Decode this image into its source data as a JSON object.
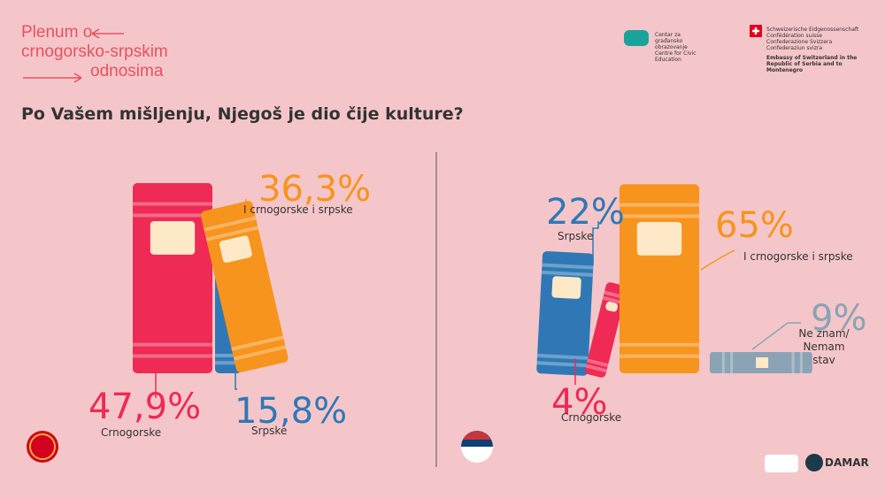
{
  "header": {
    "logo_lines": [
      "Plenum o",
      "crnogorsko-srpskim",
      "odnosima"
    ],
    "partner_lines": [
      "Centar za građansko obrazovanje",
      "Centre for Civic Education"
    ],
    "embassy_lines": [
      "Schweizerische Eidgenossenschaft",
      "Confédération suisse",
      "Confederazione Svizzera",
      "Confederaziun svizra",
      "Embassy of Switzerland in the Republic of Serbia and to Montenegro"
    ],
    "footer_logo": "DAMAR"
  },
  "question": "Po Vašem mišljenju, Njegoš je dio čije kulture?",
  "chart_data": [
    {
      "type": "book",
      "categories": [
        "Crnogorske",
        "Srpske",
        "I crnogorske i srpske"
      ],
      "values": [
        47.9,
        15.8,
        36.3
      ],
      "value_labels": [
        "47,9%",
        "15,8%",
        "36,3%"
      ],
      "colors": [
        "#ee2a55",
        "#2f78b5",
        "#f7941d"
      ]
    },
    {
      "type": "book",
      "categories": [
        "Srpske",
        "Crnogorske",
        "I crnogorske i srpske",
        "Ne znam/ Nemam stav"
      ],
      "values": [
        22,
        4,
        65,
        9
      ],
      "value_labels": [
        "22%",
        "4%",
        "65%",
        "9%"
      ],
      "colors": [
        "#2f78b5",
        "#ee2a55",
        "#f7941d",
        "#8aa3b5"
      ]
    }
  ]
}
